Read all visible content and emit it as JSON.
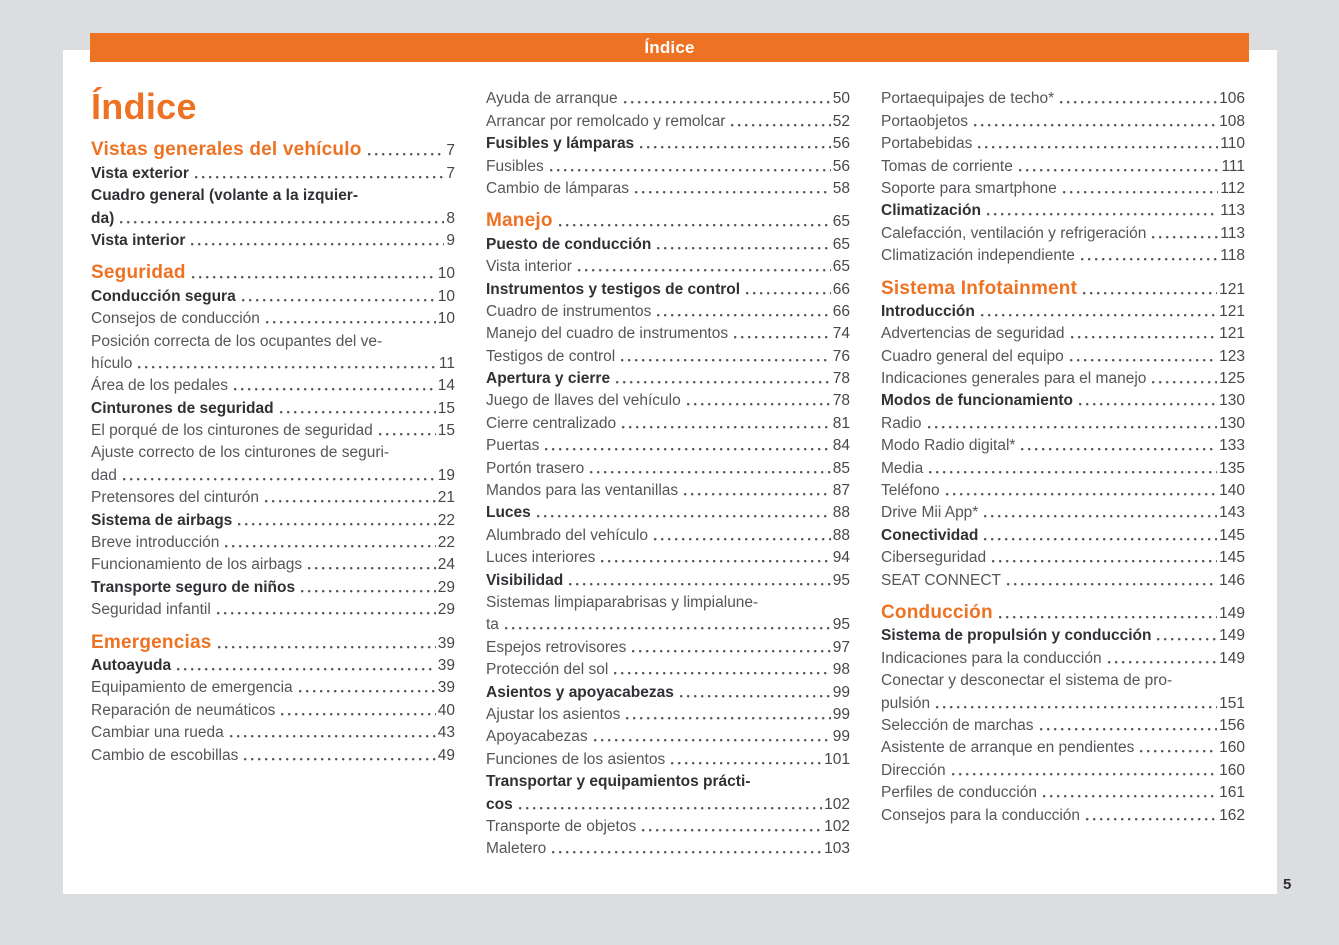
{
  "header": {
    "bar_title": "Índice"
  },
  "page_title": "Índice",
  "footer": {
    "page_number": "5"
  },
  "colors": {
    "accent_orange": "#ee7223",
    "page_background": "#ffffff",
    "margin_background": "#dcddde",
    "text_bold": "#313135",
    "text_normal": "#55565a"
  },
  "columns": [
    {
      "entries": [
        {
          "label": "Vistas generales del vehículo",
          "page": "7",
          "style": "section"
        },
        {
          "label": "Vista exterior",
          "page": "7",
          "style": "bold"
        },
        {
          "label": "Cuadro general (volante a la izquier-",
          "label2": "da)",
          "page": "8",
          "style": "bold"
        },
        {
          "label": "Vista interior",
          "page": "9",
          "style": "bold"
        },
        {
          "label": "Seguridad",
          "page": "10",
          "style": "section"
        },
        {
          "label": "Conducción segura",
          "page": "10",
          "style": "bold"
        },
        {
          "label": "Consejos de conducción",
          "page": "10",
          "style": "normal"
        },
        {
          "label": "Posición correcta de los ocupantes del ve-",
          "label2": "hículo",
          "page": "11",
          "style": "normal"
        },
        {
          "label": "Área de los pedales",
          "page": "14",
          "style": "normal"
        },
        {
          "label": "Cinturones de seguridad",
          "page": "15",
          "style": "bold"
        },
        {
          "label": "El porqué de los cinturones de seguridad",
          "page": "15",
          "style": "normal"
        },
        {
          "label": "Ajuste correcto de los cinturones de seguri-",
          "label2": "dad",
          "page": "19",
          "style": "normal"
        },
        {
          "label": "Pretensores del cinturón",
          "page": "21",
          "style": "normal"
        },
        {
          "label": "Sistema de airbags",
          "page": "22",
          "style": "bold"
        },
        {
          "label": "Breve introducción",
          "page": "22",
          "style": "normal"
        },
        {
          "label": "Funcionamiento de los airbags",
          "page": "24",
          "style": "normal"
        },
        {
          "label": "Transporte seguro de niños",
          "page": "29",
          "style": "bold"
        },
        {
          "label": "Seguridad infantil",
          "page": "29",
          "style": "normal"
        },
        {
          "label": "Emergencias",
          "page": "39",
          "style": "section"
        },
        {
          "label": "Autoayuda",
          "page": "39",
          "style": "bold"
        },
        {
          "label": "Equipamiento de emergencia",
          "page": "39",
          "style": "normal"
        },
        {
          "label": "Reparación de neumáticos",
          "page": "40",
          "style": "normal"
        },
        {
          "label": "Cambiar una rueda",
          "page": "43",
          "style": "normal"
        },
        {
          "label": "Cambio de escobillas",
          "page": "49",
          "style": "normal"
        }
      ]
    },
    {
      "entries": [
        {
          "label": "Ayuda de arranque",
          "page": "50",
          "style": "normal"
        },
        {
          "label": "Arrancar por remolcado y remolcar",
          "page": "52",
          "style": "normal"
        },
        {
          "label": "Fusibles y lámparas",
          "page": "56",
          "style": "bold"
        },
        {
          "label": "Fusibles",
          "page": "56",
          "style": "normal"
        },
        {
          "label": "Cambio de lámparas",
          "page": "58",
          "style": "normal"
        },
        {
          "label": "Manejo",
          "page": "65",
          "style": "section"
        },
        {
          "label": "Puesto de conducción",
          "page": "65",
          "style": "bold"
        },
        {
          "label": "Vista interior",
          "page": "65",
          "style": "normal"
        },
        {
          "label": "Instrumentos y testigos de control",
          "page": "66",
          "style": "bold"
        },
        {
          "label": "Cuadro de instrumentos",
          "page": "66",
          "style": "normal"
        },
        {
          "label": "Manejo del cuadro de instrumentos",
          "page": "74",
          "style": "normal"
        },
        {
          "label": "Testigos de control",
          "page": "76",
          "style": "normal"
        },
        {
          "label": "Apertura y cierre",
          "page": "78",
          "style": "bold"
        },
        {
          "label": "Juego de llaves del vehículo",
          "page": "78",
          "style": "normal"
        },
        {
          "label": "Cierre centralizado",
          "page": "81",
          "style": "normal"
        },
        {
          "label": "Puertas",
          "page": "84",
          "style": "normal"
        },
        {
          "label": "Portón trasero",
          "page": "85",
          "style": "normal"
        },
        {
          "label": "Mandos para las ventanillas",
          "page": "87",
          "style": "normal"
        },
        {
          "label": "Luces",
          "page": "88",
          "style": "bold"
        },
        {
          "label": "Alumbrado del vehículo",
          "page": "88",
          "style": "normal"
        },
        {
          "label": "Luces interiores",
          "page": "94",
          "style": "normal"
        },
        {
          "label": "Visibilidad",
          "page": "95",
          "style": "bold"
        },
        {
          "label": "Sistemas limpiaparabrisas y limpialune-",
          "label2": "ta",
          "page": "95",
          "style": "normal"
        },
        {
          "label": "Espejos retrovisores",
          "page": "97",
          "style": "normal"
        },
        {
          "label": "Protección del sol",
          "page": "98",
          "style": "normal"
        },
        {
          "label": "Asientos y apoyacabezas",
          "page": "99",
          "style": "bold"
        },
        {
          "label": "Ajustar los asientos",
          "page": "99",
          "style": "normal"
        },
        {
          "label": "Apoyacabezas",
          "page": "99",
          "style": "normal"
        },
        {
          "label": "Funciones de los asientos",
          "page": "101",
          "style": "normal"
        },
        {
          "label": "Transportar y equipamientos prácti-",
          "label2": "cos",
          "page": "102",
          "style": "bold"
        },
        {
          "label": "Transporte de objetos",
          "page": "102",
          "style": "normal"
        },
        {
          "label": "Maletero",
          "page": "103",
          "style": "normal"
        }
      ]
    },
    {
      "entries": [
        {
          "label": "Portaequipajes de techo*",
          "page": "106",
          "style": "normal"
        },
        {
          "label": "Portaobjetos",
          "page": "108",
          "style": "normal"
        },
        {
          "label": "Portabebidas",
          "page": "110",
          "style": "normal"
        },
        {
          "label": "Tomas de corriente",
          "page": "111",
          "style": "normal"
        },
        {
          "label": "Soporte para smartphone",
          "page": "112",
          "style": "normal"
        },
        {
          "label": "Climatización",
          "page": "113",
          "style": "bold"
        },
        {
          "label": "Calefacción, ventilación y refrigeración",
          "page": "113",
          "style": "normal"
        },
        {
          "label": "Climatización independiente",
          "page": "118",
          "style": "normal"
        },
        {
          "label": "Sistema Infotainment",
          "page": "121",
          "style": "section"
        },
        {
          "label": "Introducción",
          "page": "121",
          "style": "bold"
        },
        {
          "label": "Advertencias de seguridad",
          "page": "121",
          "style": "normal"
        },
        {
          "label": "Cuadro general del equipo",
          "page": "123",
          "style": "normal"
        },
        {
          "label": "Indicaciones generales para el manejo",
          "page": "125",
          "style": "normal"
        },
        {
          "label": "Modos de funcionamiento",
          "page": "130",
          "style": "bold"
        },
        {
          "label": "Radio",
          "page": "130",
          "style": "normal"
        },
        {
          "label": "Modo Radio digital*",
          "page": "133",
          "style": "normal"
        },
        {
          "label": "Media",
          "page": "135",
          "style": "normal"
        },
        {
          "label": "Teléfono",
          "page": "140",
          "style": "normal"
        },
        {
          "label": "Drive Mii App*",
          "page": "143",
          "style": "normal"
        },
        {
          "label": "Conectividad",
          "page": "145",
          "style": "bold"
        },
        {
          "label": "Ciberseguridad",
          "page": "145",
          "style": "normal"
        },
        {
          "label": "SEAT CONNECT",
          "page": "146",
          "style": "normal"
        },
        {
          "label": "Conducción",
          "page": "149",
          "style": "section"
        },
        {
          "label": "Sistema de propulsión y conducción",
          "page": "149",
          "style": "bold"
        },
        {
          "label": "Indicaciones para la conducción",
          "page": "149",
          "style": "normal"
        },
        {
          "label": "Conectar y desconectar el sistema de pro-",
          "label2": "pulsión",
          "page": "151",
          "style": "normal"
        },
        {
          "label": "Selección de marchas",
          "page": "156",
          "style": "normal"
        },
        {
          "label": "Asistente de arranque en pendientes",
          "page": "160",
          "style": "normal"
        },
        {
          "label": "Dirección",
          "page": "160",
          "style": "normal"
        },
        {
          "label": "Perfiles de conducción",
          "page": "161",
          "style": "normal"
        },
        {
          "label": "Consejos para la conducción",
          "page": "162",
          "style": "normal"
        }
      ]
    }
  ]
}
